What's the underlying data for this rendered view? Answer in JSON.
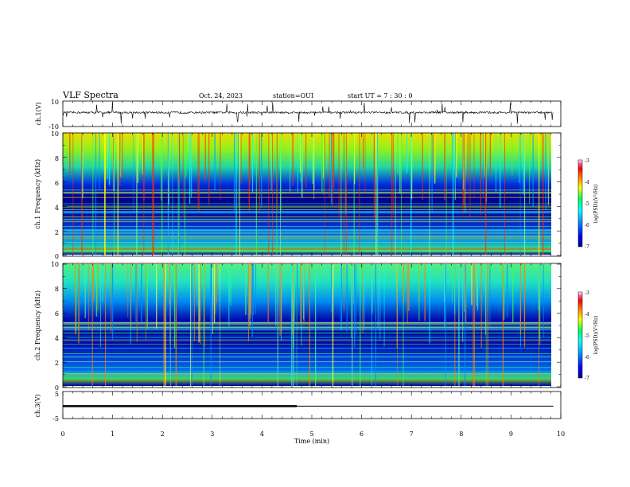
{
  "header": {
    "title": "VLF Spectra",
    "date": "Oct. 24, 2023",
    "station": "station=OUI",
    "start": "start  UT =   7 : 30 : 0"
  },
  "chart_data": [
    {
      "type": "line",
      "name": "waveform-ch1",
      "ylabel": "ch.1(V)",
      "ylim": [
        -10,
        10
      ],
      "ytick_labels": [
        "10",
        "-10"
      ],
      "x": [
        0,
        10
      ],
      "description": "noisy baseline near 1 V with frequent impulsive spikes"
    },
    {
      "type": "heatmap",
      "name": "spectrogram-ch1",
      "ylabel": "ch.1 Frequency (kHz)",
      "xlim": [
        0,
        10
      ],
      "ylim": [
        0,
        10
      ],
      "ytick_labels": [
        "0",
        "2",
        "4",
        "6",
        "8",
        "10"
      ],
      "colorbar": {
        "label": "log(PSD)(V²/Hz)",
        "range": [
          -7,
          -3
        ],
        "tick_labels": [
          "-3",
          "-4",
          "-5",
          "-6",
          "-7"
        ],
        "colormap": [
          "#000090",
          "#0000ff",
          "#00a0ff",
          "#00ffff",
          "#00ff60",
          "#ffff00",
          "#ff8000",
          "#ff0000",
          "#ff60a0",
          "#ffffff"
        ]
      }
    },
    {
      "type": "heatmap",
      "name": "spectrogram-ch2",
      "ylabel": "ch.2 Frequency (kHz)",
      "xlim": [
        0,
        10
      ],
      "ylim": [
        0,
        10
      ],
      "ytick_labels": [
        "0",
        "2",
        "4",
        "6",
        "8",
        "10"
      ],
      "colorbar": {
        "label": "log(PSD)(V²/Hz)",
        "range": [
          -7,
          -3
        ],
        "tick_labels": [
          "-3",
          "-4",
          "-5",
          "-6",
          "-7"
        ]
      }
    },
    {
      "type": "line",
      "name": "waveform-ch3",
      "ylabel": "ch.3(V)",
      "ylim": [
        -5,
        5
      ],
      "ytick_labels": [
        "5",
        "-5"
      ],
      "x": [
        0,
        4.7,
        4.7,
        9.85
      ],
      "y": [
        -0.4,
        -0.4,
        -0.4,
        -0.4
      ],
      "series": [
        {
          "x": [
            0,
            4.7
          ],
          "y": [
            -0.4,
            -0.4
          ],
          "style": "thick"
        },
        {
          "x": [
            4.7,
            9.85
          ],
          "y": [
            -0.4,
            -0.4
          ],
          "style": "thin"
        }
      ]
    }
  ],
  "xaxis": {
    "label": "Time (min)",
    "xlim": [
      0,
      10
    ],
    "tick_labels": [
      "0",
      "1",
      "2",
      "3",
      "4",
      "5",
      "6",
      "7",
      "8",
      "9",
      "10"
    ]
  }
}
